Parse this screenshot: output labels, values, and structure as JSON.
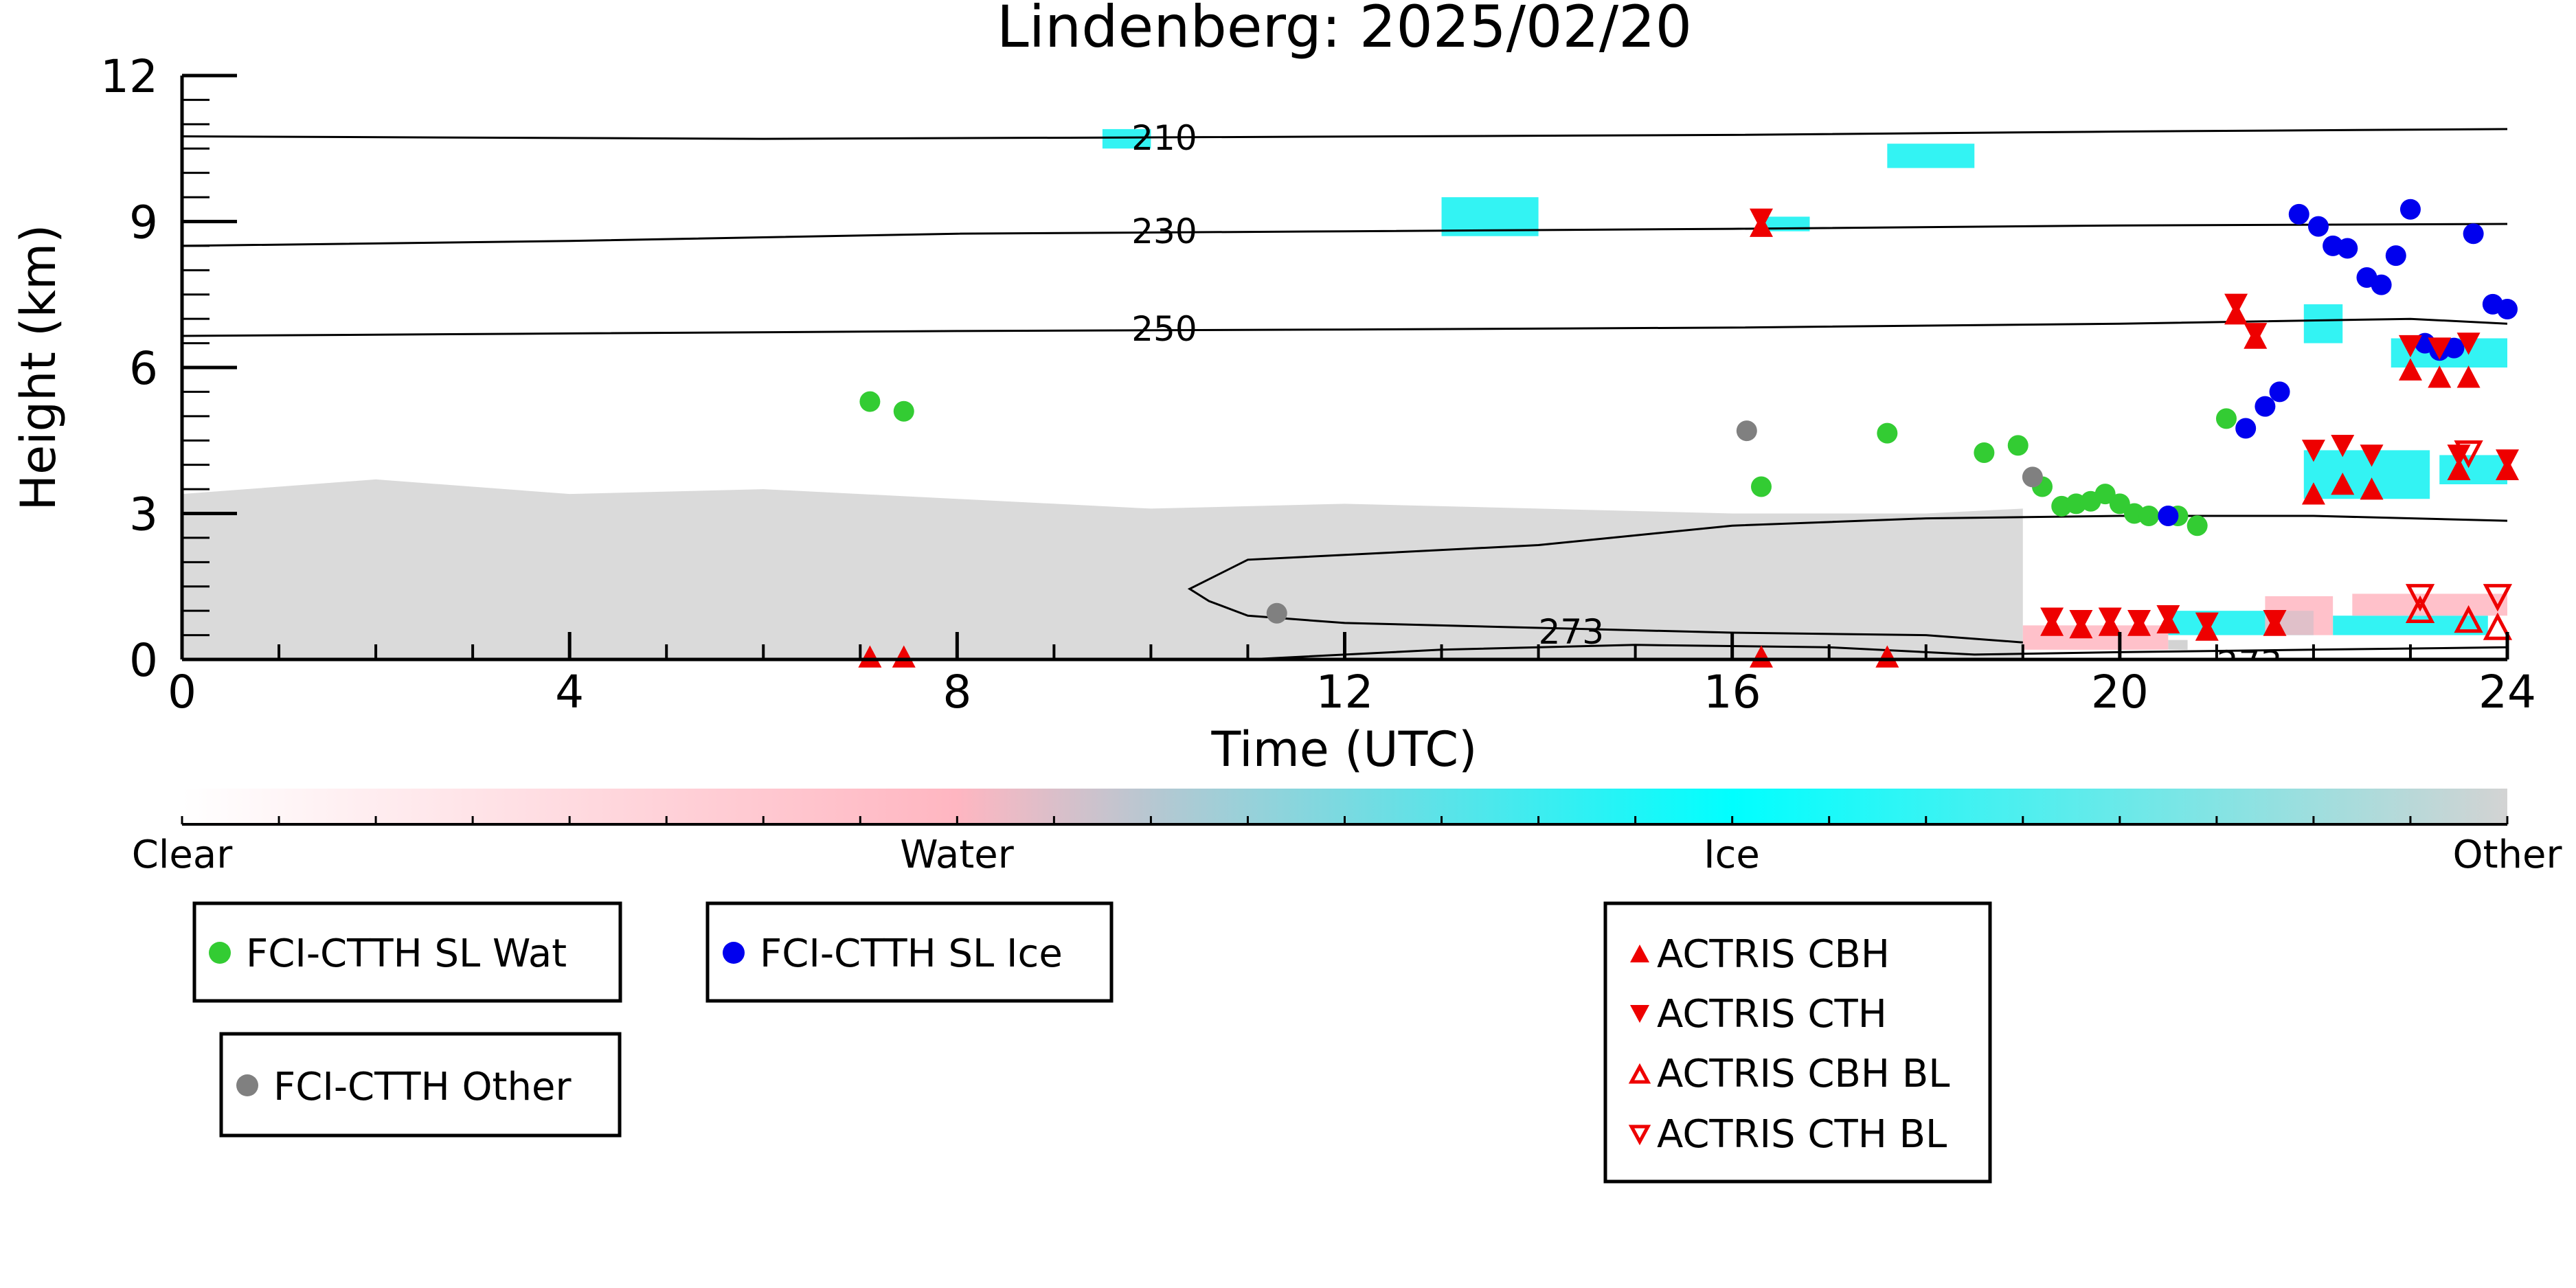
{
  "chart_data": {
    "type": "scatter",
    "title": "Lindenberg: 2025/02/20",
    "xlabel": "Time (UTC)",
    "ylabel": "Height (km)",
    "xlim": [
      0,
      24
    ],
    "ylim": [
      0,
      12
    ],
    "x_ticks": [
      "0",
      "4",
      "8",
      "12",
      "16",
      "20",
      "24"
    ],
    "y_ticks": [
      "0",
      "3",
      "6",
      "9",
      "12"
    ],
    "colorbar": {
      "labels": [
        "Clear",
        "Water",
        "Ice",
        "Other"
      ],
      "colors": [
        "#ffffff",
        "#ffb6c1",
        "#00ffff",
        "#d3d3d3"
      ]
    },
    "contours": [
      {
        "label": "210",
        "points": [
          [
            0,
            10.75
          ],
          [
            6,
            10.7
          ],
          [
            10,
            10.73
          ],
          [
            16,
            10.78
          ],
          [
            20,
            10.85
          ],
          [
            24,
            10.9
          ]
        ]
      },
      {
        "label": "230",
        "points": [
          [
            0,
            8.5
          ],
          [
            4,
            8.6
          ],
          [
            8,
            8.75
          ],
          [
            12,
            8.8
          ],
          [
            16,
            8.85
          ],
          [
            20,
            8.92
          ],
          [
            24,
            8.95
          ]
        ]
      },
      {
        "label": "250",
        "points": [
          [
            0,
            6.65
          ],
          [
            4,
            6.7
          ],
          [
            8,
            6.75
          ],
          [
            12,
            6.78
          ],
          [
            16,
            6.82
          ],
          [
            20,
            6.9
          ],
          [
            23,
            7.0
          ],
          [
            24,
            6.9
          ]
        ]
      },
      {
        "label": "273",
        "points": [
          [
            24,
            2.85
          ],
          [
            22,
            2.95
          ],
          [
            20,
            2.95
          ],
          [
            18,
            2.9
          ],
          [
            16,
            2.75
          ],
          [
            15,
            2.55
          ],
          [
            14,
            2.35
          ],
          [
            12.5,
            2.2
          ],
          [
            11,
            2.05
          ],
          [
            10.4,
            1.45
          ],
          [
            10.6,
            1.2
          ],
          [
            11,
            0.9
          ],
          [
            12,
            0.75
          ],
          [
            14,
            0.65
          ],
          [
            16,
            0.55
          ],
          [
            18,
            0.5
          ],
          [
            19,
            0.35
          ]
        ]
      },
      {
        "label": "273",
        "points": [
          [
            11,
            0.0
          ],
          [
            13,
            0.2
          ],
          [
            15,
            0.3
          ],
          [
            17,
            0.25
          ],
          [
            18.5,
            0.1
          ],
          [
            20,
            0.15
          ],
          [
            22,
            0.2
          ],
          [
            24,
            0.25
          ]
        ]
      }
    ],
    "series": [
      {
        "name": "FCI-CTTH SL Wat",
        "color": "#33cc33",
        "marker": "circle",
        "x": [
          7.1,
          7.45,
          16.3,
          17.6,
          18.6,
          18.95,
          19.2,
          19.4,
          19.55,
          19.7,
          19.85,
          20.0,
          20.15,
          20.3,
          20.6,
          20.8,
          21.1
        ],
        "y": [
          5.3,
          5.1,
          3.55,
          4.65,
          4.25,
          4.4,
          3.55,
          3.15,
          3.2,
          3.25,
          3.4,
          3.2,
          3.0,
          2.95,
          2.95,
          2.75,
          4.95
        ]
      },
      {
        "name": "FCI-CTTH SL Ice",
        "color": "#0000ee",
        "marker": "circle",
        "x": [
          20.5,
          21.3,
          21.5,
          21.65,
          21.85,
          22.05,
          22.2,
          22.35,
          22.55,
          22.7,
          22.85,
          23.0,
          23.15,
          23.3,
          23.45,
          23.65,
          23.85,
          24.0
        ],
        "y": [
          2.95,
          4.75,
          5.2,
          5.5,
          9.15,
          8.9,
          8.5,
          8.45,
          7.85,
          7.7,
          8.3,
          9.25,
          6.5,
          6.35,
          6.4,
          8.75,
          7.3,
          7.2
        ]
      },
      {
        "name": "FCI-CTTH Other",
        "color": "#808080",
        "marker": "circle",
        "x": [
          11.3,
          16.15,
          19.1
        ],
        "y": [
          0.95,
          4.7,
          3.75
        ]
      },
      {
        "name": "ACTRIS CBH",
        "color": "#ee0000",
        "marker": "triangle-up",
        "x": [
          7.1,
          7.45,
          16.3,
          17.6,
          19.3,
          19.6,
          19.9,
          20.2,
          20.5,
          20.9,
          21.6,
          21.2,
          21.4,
          22.0,
          22.3,
          22.6,
          23.0,
          23.3,
          23.6,
          23.5,
          24.0,
          16.3
        ],
        "y": [
          0.05,
          0.05,
          0.05,
          0.05,
          0.7,
          0.65,
          0.7,
          0.7,
          0.75,
          0.6,
          0.7,
          7.1,
          6.6,
          3.4,
          3.6,
          3.5,
          5.95,
          5.8,
          5.8,
          3.9,
          3.9,
          8.9
        ]
      },
      {
        "name": "ACTRIS CTH",
        "color": "#ee0000",
        "marker": "triangle-down",
        "x": [
          19.3,
          19.6,
          19.9,
          20.2,
          20.5,
          20.9,
          21.6,
          21.2,
          21.4,
          22.0,
          22.3,
          22.6,
          23.0,
          23.3,
          23.6,
          23.5,
          24.0,
          16.3
        ],
        "y": [
          0.85,
          0.8,
          0.85,
          0.8,
          0.9,
          0.75,
          0.8,
          7.3,
          6.7,
          4.3,
          4.4,
          4.2,
          6.45,
          6.4,
          6.5,
          4.2,
          4.1,
          9.05
        ]
      },
      {
        "name": "ACTRIS CBH BL",
        "color": "#ee0000",
        "marker": "triangle-up-open",
        "x": [
          23.1,
          23.6,
          23.9
        ],
        "y": [
          1.0,
          0.8,
          0.65
        ]
      },
      {
        "name": "ACTRIS CTH BL",
        "color": "#ee0000",
        "marker": "triangle-down-open",
        "x": [
          23.1,
          23.6,
          23.9
        ],
        "y": [
          1.3,
          4.25,
          1.3
        ]
      }
    ]
  }
}
